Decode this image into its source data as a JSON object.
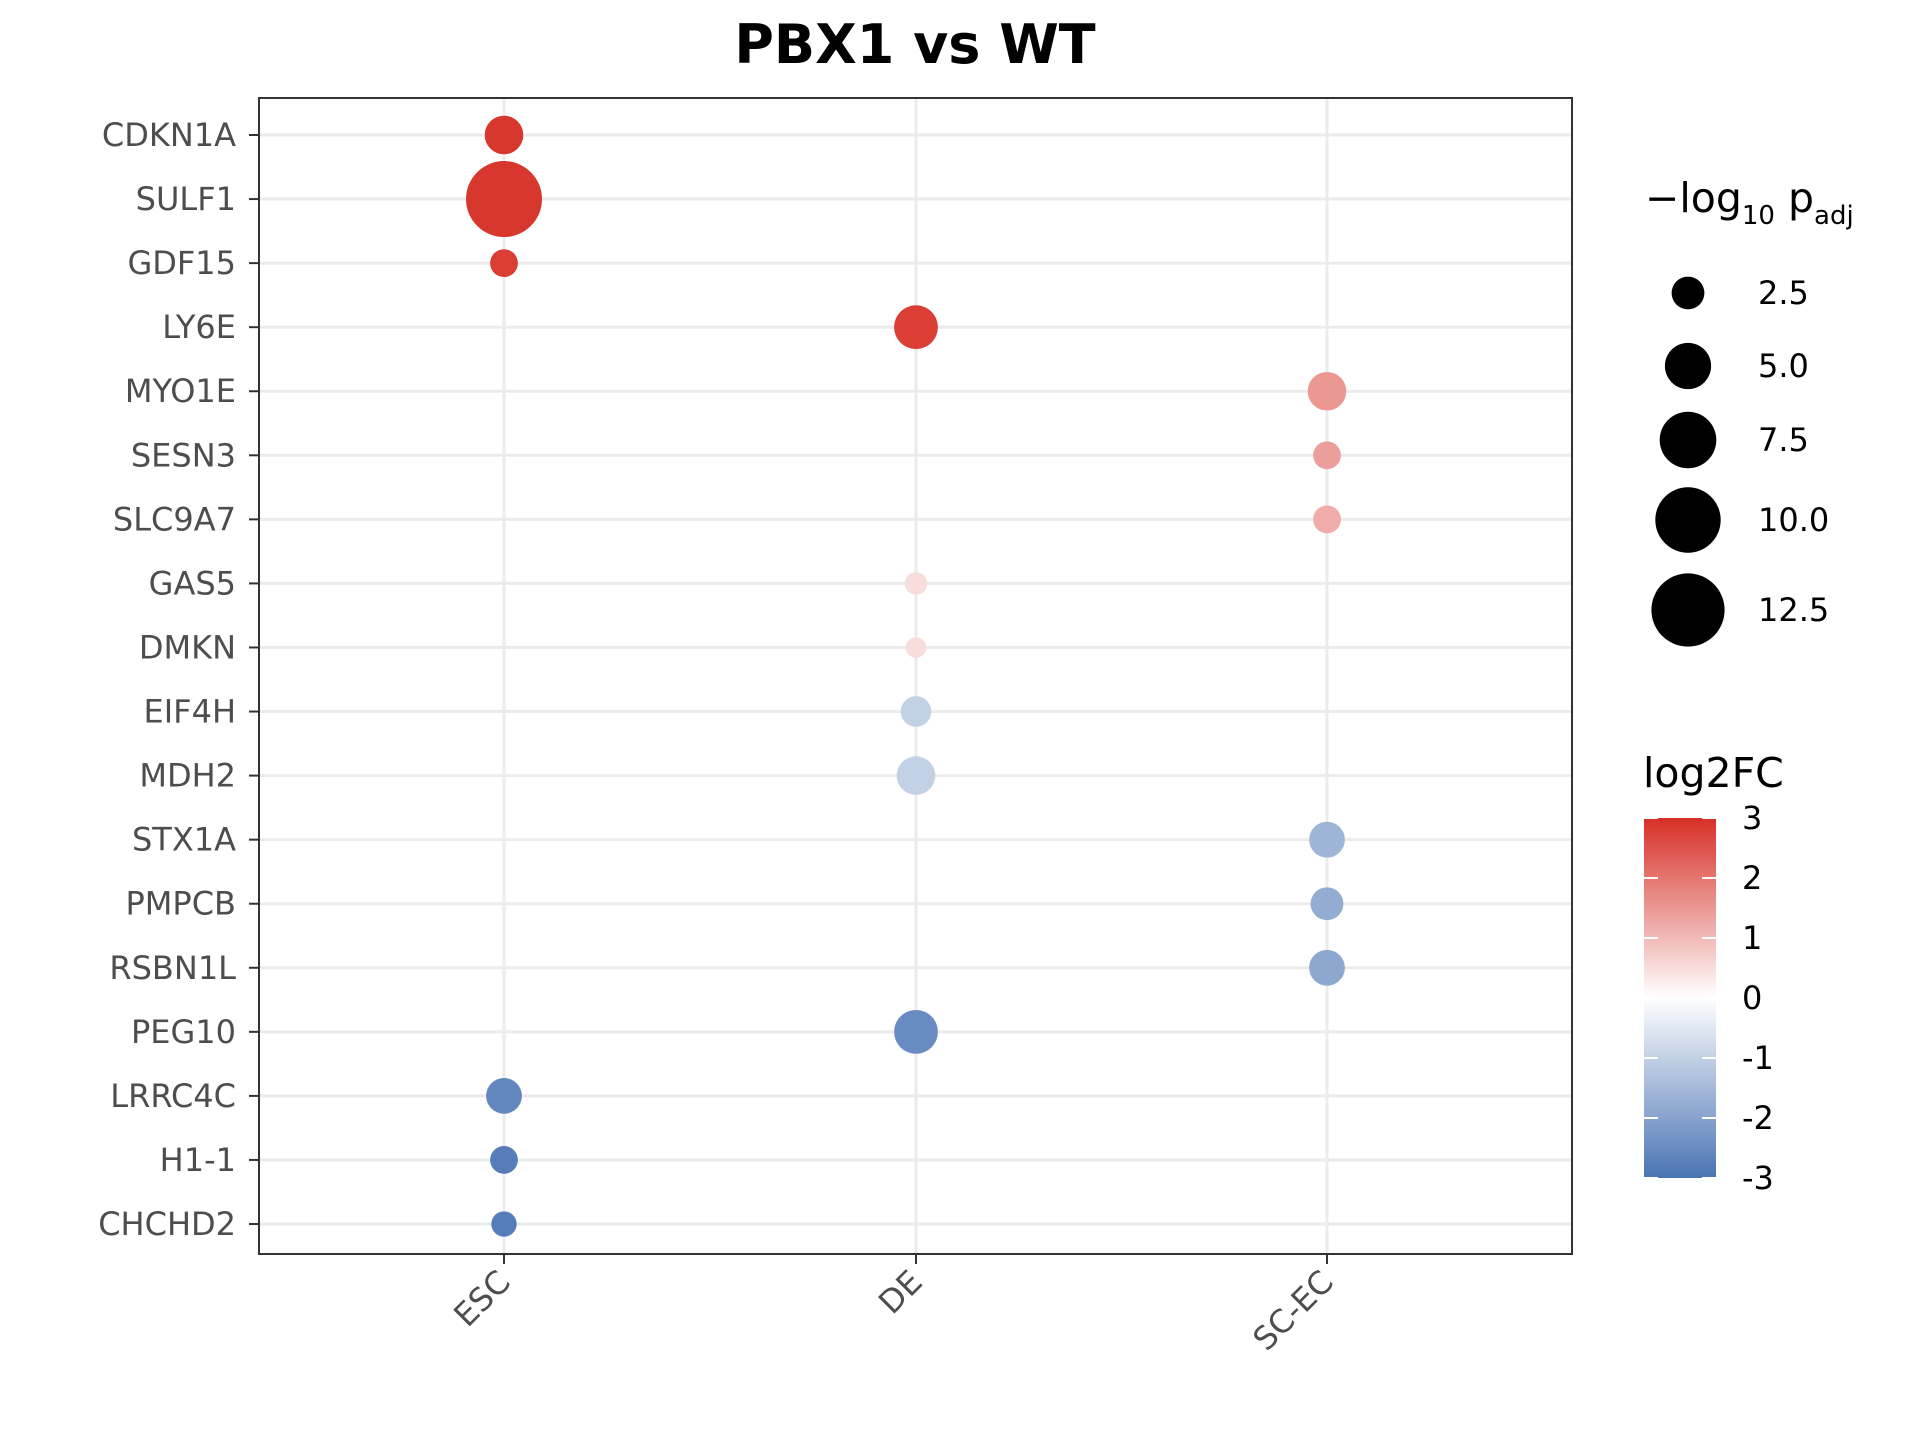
{
  "chart_data": {
    "type": "scatter",
    "title": "PBX1 vs WT",
    "xlabel": "",
    "ylabel": "",
    "x_categories": [
      "ESC",
      "DE",
      "SC-EC"
    ],
    "y_categories": [
      "CDKN1A",
      "SULF1",
      "GDF15",
      "LY6E",
      "MYO1E",
      "SESN3",
      "SLC9A7",
      "GAS5",
      "DMKN",
      "EIF4H",
      "MDH2",
      "STX1A",
      "PMPCB",
      "RSBN1L",
      "PEG10",
      "LRRC4C",
      "H1-1",
      "CHCHD2"
    ],
    "points": [
      {
        "gene": "CDKN1A",
        "stage": "ESC",
        "log2FC": 2.9,
        "neglog10_padj": 3.5
      },
      {
        "gene": "SULF1",
        "stage": "ESC",
        "log2FC": 2.9,
        "neglog10_padj": 13.5
      },
      {
        "gene": "GDF15",
        "stage": "ESC",
        "log2FC": 2.8,
        "neglog10_padj": 1.8
      },
      {
        "gene": "LY6E",
        "stage": "DE",
        "log2FC": 2.8,
        "neglog10_padj": 4.5
      },
      {
        "gene": "MYO1E",
        "stage": "SC-EC",
        "log2FC": 1.5,
        "neglog10_padj": 3.5
      },
      {
        "gene": "SESN3",
        "stage": "SC-EC",
        "log2FC": 1.4,
        "neglog10_padj": 1.8
      },
      {
        "gene": "SLC9A7",
        "stage": "SC-EC",
        "log2FC": 1.2,
        "neglog10_padj": 1.8
      },
      {
        "gene": "GAS5",
        "stage": "DE",
        "log2FC": 0.5,
        "neglog10_padj": 1.2
      },
      {
        "gene": "DMKN",
        "stage": "DE",
        "log2FC": 0.5,
        "neglog10_padj": 1.0
      },
      {
        "gene": "EIF4H",
        "stage": "DE",
        "log2FC": -1.0,
        "neglog10_padj": 2.2
      },
      {
        "gene": "MDH2",
        "stage": "DE",
        "log2FC": -1.0,
        "neglog10_padj": 3.5
      },
      {
        "gene": "STX1A",
        "stage": "SC-EC",
        "log2FC": -1.6,
        "neglog10_padj": 3.0
      },
      {
        "gene": "PMPCB",
        "stage": "SC-EC",
        "log2FC": -1.8,
        "neglog10_padj": 2.5
      },
      {
        "gene": "RSBN1L",
        "stage": "SC-EC",
        "log2FC": -1.9,
        "neglog10_padj": 3.0
      },
      {
        "gene": "PEG10",
        "stage": "DE",
        "log2FC": -2.5,
        "neglog10_padj": 4.5
      },
      {
        "gene": "LRRC4C",
        "stage": "ESC",
        "log2FC": -2.6,
        "neglog10_padj": 3.0
      },
      {
        "gene": "H1-1",
        "stage": "ESC",
        "log2FC": -2.8,
        "neglog10_padj": 1.8
      },
      {
        "gene": "CHCHD2",
        "stage": "ESC",
        "log2FC": -2.8,
        "neglog10_padj": 1.5
      }
    ],
    "size_legend": {
      "title_prefix": "−log",
      "title_sub": "10",
      "title_p": " p",
      "title_p_sub": "adj",
      "values": [
        2.5,
        5.0,
        7.5,
        10.0,
        12.5
      ],
      "labels": [
        "2.5",
        "5.0",
        "7.5",
        "10.0",
        "12.5"
      ]
    },
    "color_legend": {
      "title": "log2FC",
      "range": [
        -3,
        3
      ],
      "ticks": [
        3,
        2,
        1,
        0,
        -1,
        -2,
        -3
      ],
      "tick_labels": [
        "3",
        "2",
        "1",
        "0",
        "-1",
        "-2",
        "-3"
      ],
      "colors": {
        "low": "#4a74b4",
        "mid": "#ffffff",
        "high": "#d73027"
      }
    },
    "grid": true,
    "legend_position": "right"
  }
}
